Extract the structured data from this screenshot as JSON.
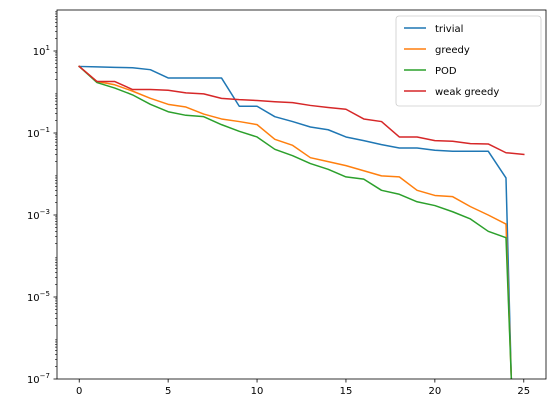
{
  "chart_data": {
    "type": "line",
    "title": "",
    "xlabel": "",
    "ylabel": "",
    "yscale": "log",
    "xlim": [
      -1.25,
      26.25
    ],
    "ylim": [
      1e-07,
      100
    ],
    "grid": false,
    "legend_position": "top-right",
    "x_ticks": [
      0,
      5,
      10,
      15,
      20,
      25
    ],
    "x_tick_labels": [
      "0",
      "5",
      "10",
      "15",
      "20",
      "25"
    ],
    "y_ticks": [
      1e-07,
      1e-05,
      0.001,
      0.1,
      10
    ],
    "y_tick_labels": [
      {
        "base": "10",
        "exp": "−7"
      },
      {
        "base": "10",
        "exp": "−5"
      },
      {
        "base": "10",
        "exp": "−3"
      },
      {
        "base": "10",
        "exp": "−1"
      },
      {
        "base": "10",
        "exp": "1"
      }
    ],
    "series": [
      {
        "name": "trivial",
        "color": "#1f77b4",
        "x": [
          0,
          1,
          2,
          3,
          4,
          5,
          6,
          7,
          8,
          9,
          10,
          11,
          12,
          13,
          14,
          15,
          16,
          17,
          18,
          19,
          20,
          21,
          22,
          23,
          24,
          24.3
        ],
        "values": [
          4.2,
          4.1,
          4.0,
          3.9,
          3.5,
          2.2,
          2.2,
          2.2,
          2.2,
          0.45,
          0.45,
          0.25,
          0.19,
          0.14,
          0.12,
          0.08,
          0.065,
          0.052,
          0.043,
          0.043,
          0.038,
          0.036,
          0.036,
          0.036,
          0.008,
          1e-07
        ]
      },
      {
        "name": "greedy",
        "color": "#ff7f0e",
        "x": [
          0,
          1,
          2,
          3,
          4,
          5,
          6,
          7,
          8,
          9,
          10,
          11,
          12,
          13,
          14,
          15,
          16,
          17,
          18,
          19,
          20,
          21,
          22,
          23,
          24,
          24.3
        ],
        "values": [
          4.2,
          1.8,
          1.5,
          1.05,
          0.7,
          0.5,
          0.43,
          0.29,
          0.22,
          0.19,
          0.16,
          0.07,
          0.05,
          0.025,
          0.02,
          0.016,
          0.012,
          0.009,
          0.0085,
          0.004,
          0.003,
          0.0028,
          0.0016,
          0.001,
          0.0006,
          1e-07
        ]
      },
      {
        "name": "POD",
        "color": "#2ca02c",
        "x": [
          0,
          1,
          2,
          3,
          4,
          5,
          6,
          7,
          8,
          9,
          10,
          11,
          12,
          13,
          14,
          15,
          16,
          17,
          18,
          19,
          20,
          21,
          22,
          23,
          24,
          24.3
        ],
        "values": [
          4.2,
          1.7,
          1.25,
          0.85,
          0.5,
          0.33,
          0.27,
          0.25,
          0.16,
          0.11,
          0.08,
          0.04,
          0.028,
          0.018,
          0.013,
          0.0085,
          0.0075,
          0.004,
          0.0032,
          0.0021,
          0.0017,
          0.0012,
          0.0008,
          0.0004,
          0.00028,
          1e-07
        ]
      },
      {
        "name": "weak greedy",
        "color": "#d62728",
        "x": [
          0,
          1,
          2,
          3,
          4,
          5,
          6,
          7,
          8,
          9,
          10,
          11,
          12,
          13,
          14,
          15,
          16,
          17,
          18,
          19,
          20,
          21,
          22,
          23,
          24,
          25
        ],
        "values": [
          4.2,
          1.8,
          1.8,
          1.15,
          1.15,
          1.1,
          0.95,
          0.9,
          0.7,
          0.65,
          0.62,
          0.58,
          0.55,
          0.47,
          0.42,
          0.38,
          0.22,
          0.19,
          0.08,
          0.08,
          0.065,
          0.063,
          0.055,
          0.054,
          0.033,
          0.03
        ]
      }
    ]
  }
}
